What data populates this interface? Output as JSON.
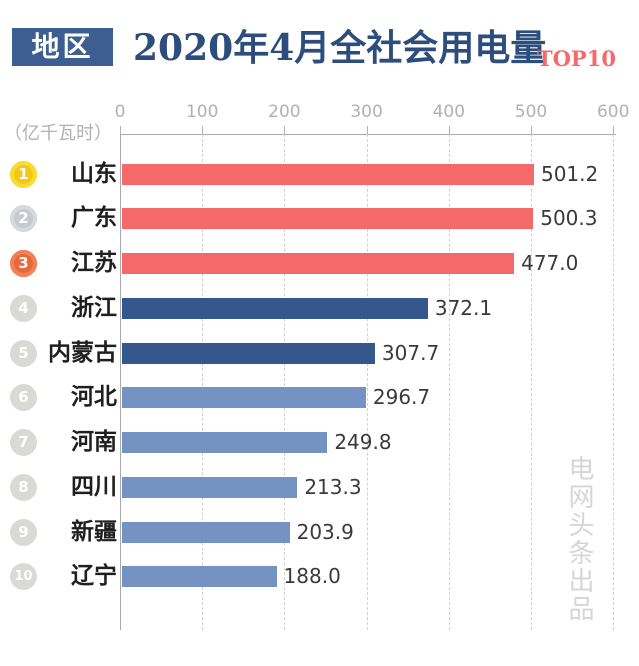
{
  "header": {
    "badge": "地区",
    "title": "2020年4月全社会用电量",
    "subtitle": "TOP10"
  },
  "unit_label": "（亿千瓦时）",
  "watermark": "电网头条出品",
  "colors": {
    "badge_blue": "#3d5e90",
    "title_blue": "#2d4d7d",
    "accent_red": "#f5696b",
    "bar_red": "#f5696b",
    "bar_dark_blue": "#35578e",
    "bar_light_blue": "#7492c2",
    "medal_gold": "#f2c71c",
    "medal_silver": "#c3cad2",
    "medal_bronze": "#e8683c",
    "rank_gray": "#d9d9d5",
    "axis_gray": "#b1b1b1"
  },
  "chart_data": {
    "type": "bar",
    "orientation": "horizontal",
    "title": "2020年4月全社会用电量 TOP10",
    "unit": "亿千瓦时",
    "xlim": [
      0,
      600
    ],
    "xticks": [
      0,
      100,
      200,
      300,
      400,
      500,
      600
    ],
    "grid": "vertical-dashed",
    "legend": "none",
    "categories": [
      "山东",
      "广东",
      "江苏",
      "浙江",
      "内蒙古",
      "河北",
      "河南",
      "四川",
      "新疆",
      "辽宁"
    ],
    "values": [
      501.2,
      500.3,
      477.0,
      372.1,
      307.7,
      296.7,
      249.8,
      213.3,
      203.9,
      188.0
    ],
    "ranks": [
      1,
      2,
      3,
      4,
      5,
      6,
      7,
      8,
      9,
      10
    ],
    "bar_styles": [
      "red",
      "red",
      "red",
      "dark",
      "dark",
      "light",
      "light",
      "light",
      "light",
      "light"
    ],
    "rank_styles": [
      "gold",
      "silver",
      "bronze",
      "gray",
      "gray",
      "gray",
      "gray",
      "gray",
      "gray",
      "gray"
    ]
  }
}
